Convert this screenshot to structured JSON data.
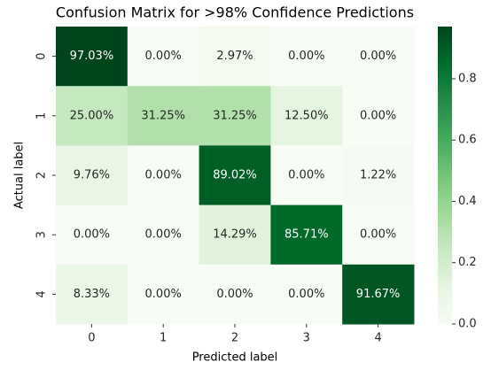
{
  "chart_data": {
    "type": "heatmap",
    "title": "Confusion Matrix for >98% Confidence Predictions",
    "xlabel": "Predicted label",
    "ylabel": "Actual label",
    "x_categories": [
      "0",
      "1",
      "2",
      "3",
      "4"
    ],
    "y_categories": [
      "0",
      "1",
      "2",
      "3",
      "4"
    ],
    "values": [
      [
        0.9703,
        0.0,
        0.0297,
        0.0,
        0.0
      ],
      [
        0.25,
        0.3125,
        0.3125,
        0.125,
        0.0
      ],
      [
        0.0976,
        0.0,
        0.8902,
        0.0,
        0.0122
      ],
      [
        0.0,
        0.0,
        0.1429,
        0.8571,
        0.0
      ],
      [
        0.0833,
        0.0,
        0.0,
        0.0,
        0.9167
      ]
    ],
    "value_labels": [
      [
        "97.03%",
        "0.00%",
        "2.97%",
        "0.00%",
        "0.00%"
      ],
      [
        "25.00%",
        "31.25%",
        "31.25%",
        "12.50%",
        "0.00%"
      ],
      [
        "9.76%",
        "0.00%",
        "89.02%",
        "0.00%",
        "1.22%"
      ],
      [
        "0.00%",
        "0.00%",
        "14.29%",
        "85.71%",
        "0.00%"
      ],
      [
        "8.33%",
        "0.00%",
        "0.00%",
        "0.00%",
        "91.67%"
      ]
    ],
    "colormap": "Greens",
    "clim": [
      0,
      0.9703
    ],
    "cticks": [
      {
        "value": 0,
        "label": "0.0"
      },
      0.2,
      0.4,
      0.6,
      0.8
    ]
  }
}
